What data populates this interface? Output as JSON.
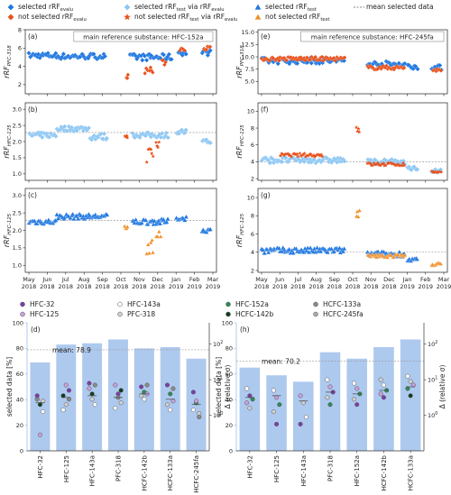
{
  "figure_legend": {
    "items": [
      {
        "label": "selected rRF",
        "sub": "evalu",
        "marker": "diamond",
        "color": "#1f77e0"
      },
      {
        "label": "not selected rRF",
        "sub": "evalu",
        "marker": "diamond",
        "color": "#e8501a"
      },
      {
        "label": "selected rRF",
        "sub": "test",
        "suffix": " via rRF",
        "suffix_sub": "evalu",
        "marker": "diamond",
        "color": "#8fc8f4"
      },
      {
        "label": "not selected rRF",
        "sub": "test",
        "suffix": " via rRF",
        "suffix_sub": "evalu",
        "marker": "star",
        "color": "#e8501a"
      },
      {
        "label": "selected rRF",
        "sub": "test",
        "marker": "triangle",
        "color": "#1f77e0"
      },
      {
        "label": "not selected rRF",
        "sub": "test",
        "marker": "triangle",
        "color": "#f0902a"
      },
      {
        "label": "mean selected data",
        "marker": "dash",
        "color": "#888888"
      }
    ]
  },
  "timeseries_xaxis": {
    "ticks": [
      {
        "m": "May",
        "y": "2018"
      },
      {
        "m": "Jun",
        "y": "2018"
      },
      {
        "m": "Jul",
        "y": "2018"
      },
      {
        "m": "Aug",
        "y": "2018"
      },
      {
        "m": "Sep",
        "y": "2018"
      },
      {
        "m": "Oct",
        "y": "2018"
      },
      {
        "m": "Nov",
        "y": "2018"
      },
      {
        "m": "Dec",
        "y": "2018"
      },
      {
        "m": "Jan",
        "y": "2019"
      },
      {
        "m": "Feb",
        "y": "2019"
      },
      {
        "m": "Mar",
        "y": "2019"
      }
    ]
  },
  "bar_legend": {
    "items": [
      {
        "label": "HFC-32",
        "color": "#7b3fa8"
      },
      {
        "label": "HFC-143a",
        "color": "#ffffff"
      },
      {
        "label": "HFC-152a",
        "color": "#2e8b57"
      },
      {
        "label": "HCFC-133a",
        "color": "#8a8a8a"
      },
      {
        "label": "HFC-125",
        "color": "#c9a0dc"
      },
      {
        "label": "PFC-318",
        "color": "#d0d0d0"
      },
      {
        "label": "HCFC-142b",
        "color": "#0f3d1e"
      },
      {
        "label": "HCFC-245fa",
        "color": "#aaaaaa"
      }
    ]
  },
  "chart_data": [
    {
      "id": "a",
      "panel_label": "(a)",
      "type": "scatter",
      "title": "main reference substance: HFC-152a",
      "ylabel_main": "rRF",
      "ylabel_sub": "PFC-318",
      "ylim": [
        1,
        8
      ],
      "yticks": [
        2,
        4,
        6,
        8
      ],
      "mean": null,
      "series": [
        {
          "kind": "sel_evalu",
          "segments": [
            [
              0.0,
              1.5,
              5.2,
              0.3
            ],
            [
              1.5,
              4.2,
              5.1,
              0.3
            ],
            [
              5.5,
              7.8,
              5.0,
              0.35
            ],
            [
              8.1,
              8.6,
              5.5,
              0.3
            ],
            [
              9.4,
              9.9,
              5.5,
              0.3
            ]
          ]
        },
        {
          "kind": "not_evalu",
          "segments": [
            [
              5.3,
              5.4,
              2.9,
              0.2
            ],
            [
              6.3,
              6.8,
              3.6,
              0.5
            ],
            [
              7.2,
              7.5,
              4.4,
              0.3
            ],
            [
              8.2,
              8.5,
              5.9,
              0.2
            ],
            [
              9.5,
              9.9,
              6.0,
              0.2
            ]
          ]
        }
      ]
    },
    {
      "id": "b",
      "panel_label": "(b)",
      "type": "scatter",
      "ylabel_main": "rRF",
      "ylabel_sub": "HFC-125",
      "ylim": [
        0.8,
        3.2
      ],
      "yticks": [
        1.0,
        1.5,
        2.0,
        2.5,
        3.0
      ],
      "mean": 2.28,
      "series": [
        {
          "kind": "sel_test_via",
          "segments": [
            [
              0.0,
              1.5,
              2.2,
              0.08
            ],
            [
              1.5,
              3.3,
              2.4,
              0.08
            ],
            [
              3.3,
              4.3,
              2.15,
              0.1
            ],
            [
              5.6,
              7.6,
              2.2,
              0.08
            ],
            [
              8.0,
              8.6,
              2.3,
              0.08
            ],
            [
              9.4,
              9.9,
              2.0,
              0.06
            ]
          ]
        },
        {
          "kind": "not_test_via",
          "segments": [
            [
              5.2,
              5.4,
              2.15,
              0.05
            ],
            [
              6.4,
              6.8,
              1.6,
              0.25
            ],
            [
              6.9,
              7.1,
              1.9,
              0.15
            ]
          ]
        }
      ]
    },
    {
      "id": "c",
      "panel_label": "(c)",
      "type": "scatter",
      "ylabel_main": "rRF",
      "ylabel_sub": "HFC-125",
      "ylim": [
        0.8,
        3.2
      ],
      "yticks": [
        1.0,
        1.5,
        2.0,
        2.5,
        3.0
      ],
      "mean": 2.28,
      "series": [
        {
          "kind": "sel_test",
          "segments": [
            [
              0.0,
              1.5,
              2.25,
              0.07
            ],
            [
              1.5,
              4.3,
              2.4,
              0.07
            ],
            [
              5.6,
              7.6,
              2.25,
              0.08
            ],
            [
              8.0,
              8.6,
              2.35,
              0.06
            ],
            [
              9.4,
              9.9,
              2.0,
              0.05
            ]
          ]
        },
        {
          "kind": "not_test",
          "segments": [
            [
              5.2,
              5.4,
              2.1,
              0.05
            ],
            [
              6.4,
              6.8,
              1.5,
              0.3
            ],
            [
              6.9,
              7.2,
              1.85,
              0.15
            ]
          ]
        }
      ]
    },
    {
      "id": "e",
      "panel_label": "(e)",
      "type": "scatter",
      "title": "main reference substance: HFC-245fa",
      "ylabel_main": "rRF",
      "ylabel_sub": "PFC-318",
      "ylim": [
        2.5,
        15.5
      ],
      "yticks": [
        5.0,
        7.5,
        10.0,
        12.5,
        15.0
      ],
      "mean": null,
      "series": [
        {
          "kind": "sel_evalu",
          "segments": [
            [
              0.0,
              4.6,
              9.2,
              0.6
            ],
            [
              5.8,
              7.9,
              8.5,
              0.6
            ],
            [
              8.0,
              8.6,
              8.0,
              0.5
            ],
            [
              9.3,
              9.9,
              7.8,
              0.5
            ]
          ]
        },
        {
          "kind": "not_evalu",
          "segments": [
            [
              0.0,
              4.6,
              9.6,
              0.4
            ],
            [
              5.8,
              7.9,
              7.8,
              0.4
            ],
            [
              9.4,
              9.9,
              7.3,
              0.3
            ]
          ]
        }
      ]
    },
    {
      "id": "f",
      "panel_label": "(f)",
      "type": "scatter",
      "ylabel_main": "rRF",
      "ylabel_sub": "HFC-125",
      "ylim": [
        1.8,
        11
      ],
      "yticks": [
        2,
        4,
        6,
        8,
        10
      ],
      "mean": 4.0,
      "series": [
        {
          "kind": "sel_test_via",
          "segments": [
            [
              0.0,
              4.6,
              4.2,
              0.35
            ],
            [
              5.8,
              7.9,
              4.0,
              0.3
            ],
            [
              8.0,
              8.6,
              3.2,
              0.25
            ],
            [
              9.3,
              9.9,
              2.9,
              0.2
            ]
          ]
        },
        {
          "kind": "not_test_via",
          "segments": [
            [
              1.0,
              3.4,
              4.8,
              0.2
            ],
            [
              5.2,
              5.4,
              8.0,
              0.6
            ],
            [
              5.8,
              7.9,
              3.7,
              0.2
            ],
            [
              9.3,
              9.9,
              2.8,
              0.1
            ]
          ]
        }
      ]
    },
    {
      "id": "g",
      "panel_label": "(g)",
      "type": "scatter",
      "ylabel_main": "rRF",
      "ylabel_sub": "HFC-125",
      "ylim": [
        1.8,
        11
      ],
      "yticks": [
        2,
        4,
        6,
        8,
        10
      ],
      "mean": 4.0,
      "series": [
        {
          "kind": "sel_test",
          "segments": [
            [
              0.0,
              4.6,
              4.2,
              0.3
            ],
            [
              5.8,
              7.9,
              3.8,
              0.3
            ],
            [
              8.0,
              8.6,
              3.2,
              0.2
            ]
          ]
        },
        {
          "kind": "not_test",
          "segments": [
            [
              5.2,
              5.4,
              8.0,
              0.6
            ],
            [
              5.8,
              7.9,
              3.6,
              0.2
            ],
            [
              9.3,
              9.9,
              2.7,
              0.15
            ]
          ]
        }
      ]
    },
    {
      "id": "d",
      "panel_label": "(d)",
      "type": "bar",
      "ylabel": "selected data [%]",
      "ylabel_right": "Δ (relative σ)",
      "ylim": [
        0,
        100
      ],
      "yticks": [
        0,
        20,
        40,
        60,
        80,
        100
      ],
      "mean_value": 78.9,
      "mean_label": "mean: 78.9",
      "categories": [
        "HFC-32",
        "HFC-125",
        "HFC-143a",
        "PFC-318",
        "HCFC-142b",
        "HCFC-133a",
        "HCFC-245fa"
      ],
      "values": [
        69,
        83,
        84,
        87,
        80,
        81,
        72
      ],
      "delta_right_ticks": [
        {
          "label": "10",
          "sup": "0",
          "v": 0
        },
        {
          "label": "10",
          "sup": "1",
          "v": 1
        },
        {
          "label": "10",
          "sup": "2",
          "v": 2
        }
      ],
      "delta_range": [
        -1,
        2.6
      ],
      "delta_points": [
        [
          [
            0.45,
            "#8a8a8a"
          ],
          [
            0.3,
            "#0f3d1e"
          ],
          [
            0.1,
            "#ffffff"
          ],
          [
            0.55,
            "#7b3fa8"
          ],
          [
            -0.55,
            "#c9a0dc"
          ],
          [
            0.4,
            "#d0d0d0"
          ]
        ],
        [
          [
            0.55,
            "#0f3d1e"
          ],
          [
            0.3,
            "#d0d0d0"
          ],
          [
            0.7,
            "#7b3fa8"
          ],
          [
            0.15,
            "#ffffff"
          ],
          [
            0.85,
            "#c9a0dc"
          ],
          [
            0.45,
            "#8a8a8a"
          ]
        ],
        [
          [
            0.9,
            "#7b3fa8"
          ],
          [
            0.6,
            "#0f3d1e"
          ],
          [
            0.3,
            "#ffffff"
          ],
          [
            0.75,
            "#c9a0dc"
          ],
          [
            0.45,
            "#d0d0d0"
          ],
          [
            0.85,
            "#8a8a8a"
          ]
        ],
        [
          [
            0.85,
            "#c9a0dc"
          ],
          [
            0.6,
            "#7b3fa8"
          ],
          [
            0.35,
            "#d0d0d0"
          ],
          [
            0.2,
            "#ffffff"
          ],
          [
            0.5,
            "#8a8a8a"
          ],
          [
            0.7,
            "#0f3d1e"
          ]
        ],
        [
          [
            0.8,
            "#7b3fa8"
          ],
          [
            0.65,
            "#2e8b57"
          ],
          [
            0.6,
            "#c9a0dc"
          ],
          [
            0.55,
            "#d0d0d0"
          ],
          [
            0.45,
            "#ffffff"
          ],
          [
            0.85,
            "#8a8a8a"
          ]
        ],
        [
          [
            0.85,
            "#7b3fa8"
          ],
          [
            0.6,
            "#2e8b57"
          ],
          [
            0.4,
            "#c9a0dc"
          ],
          [
            0.3,
            "#d0d0d0"
          ],
          [
            0.15,
            "#ffffff"
          ],
          [
            0.75,
            "#8a8a8a"
          ]
        ],
        [
          [
            0.65,
            "#7b3fa8"
          ],
          [
            0.35,
            "#2e8b57"
          ],
          [
            0.05,
            "#d0d0d0"
          ],
          [
            0.15,
            "#ffffff"
          ],
          [
            0.4,
            "#c9a0dc"
          ],
          [
            -0.05,
            "#8a8a8a"
          ]
        ]
      ],
      "delta_median": [
        0.35,
        0.5,
        0.55,
        0.5,
        0.6,
        0.45,
        0.3
      ]
    },
    {
      "id": "h",
      "panel_label": "(h)",
      "type": "bar",
      "ylabel": "selected data [%]",
      "ylabel_right": "Δ (relative σ)",
      "ylim": [
        0,
        100
      ],
      "yticks": [
        0,
        20,
        40,
        60,
        80,
        100
      ],
      "mean_value": 70.2,
      "mean_label": "mean: 70.2",
      "categories": [
        "HFC-32",
        "HFC-125",
        "HFC-143a",
        "PFC-318",
        "HFC-152a",
        "HCFC-142b",
        "HCFC-133a"
      ],
      "values": [
        65,
        59,
        54,
        77,
        72,
        81,
        87
      ],
      "delta_right_ticks": [
        {
          "label": "10",
          "sup": "0",
          "v": 0
        },
        {
          "label": "10",
          "sup": "1",
          "v": 1
        },
        {
          "label": "10",
          "sup": "2",
          "v": 2
        }
      ],
      "delta_range": [
        -1,
        2.6
      ],
      "delta_points": [
        [
          [
            0.75,
            "#ffffff"
          ],
          [
            0.55,
            "#7b3fa8"
          ],
          [
            0.45,
            "#2e8b57"
          ],
          [
            0.35,
            "#c9a0dc"
          ],
          [
            0.2,
            "#d0d0d0"
          ]
        ],
        [
          [
            0.7,
            "#ffffff"
          ],
          [
            0.5,
            "#c9a0dc"
          ],
          [
            0.3,
            "#2e8b57"
          ],
          [
            0.1,
            "#d0d0d0"
          ],
          [
            -0.25,
            "#7b3fa8"
          ]
        ],
        [
          [
            0.55,
            "#c9a0dc"
          ],
          [
            0.35,
            "#d0d0d0"
          ],
          [
            -0.05,
            "#ffffff"
          ],
          [
            -0.25,
            "#7b3fa8"
          ]
        ],
        [
          [
            1.0,
            "#ffffff"
          ],
          [
            0.8,
            "#c9a0dc"
          ],
          [
            0.65,
            "#7b3fa8"
          ],
          [
            0.5,
            "#d0d0d0"
          ],
          [
            0.3,
            "#2e8b57"
          ]
        ],
        [
          [
            0.9,
            "#ffffff"
          ],
          [
            0.75,
            "#c9a0dc"
          ],
          [
            0.6,
            "#2e8b57"
          ],
          [
            0.45,
            "#d0d0d0"
          ],
          [
            0.3,
            "#7b3fa8"
          ]
        ],
        [
          [
            1.0,
            "#d0d0d0"
          ],
          [
            0.85,
            "#ffffff"
          ],
          [
            0.7,
            "#2e8b57"
          ],
          [
            0.6,
            "#c9a0dc"
          ],
          [
            0.5,
            "#7b3fa8"
          ]
        ],
        [
          [
            1.1,
            "#ffffff"
          ],
          [
            0.95,
            "#d0d0d0"
          ],
          [
            0.85,
            "#c9a0dc"
          ],
          [
            0.75,
            "#2e8b57"
          ],
          [
            0.55,
            "#0f3d1e"
          ]
        ]
      ],
      "delta_median": [
        0.5,
        0.55,
        0.4,
        0.65,
        0.6,
        0.7,
        0.8
      ]
    }
  ]
}
